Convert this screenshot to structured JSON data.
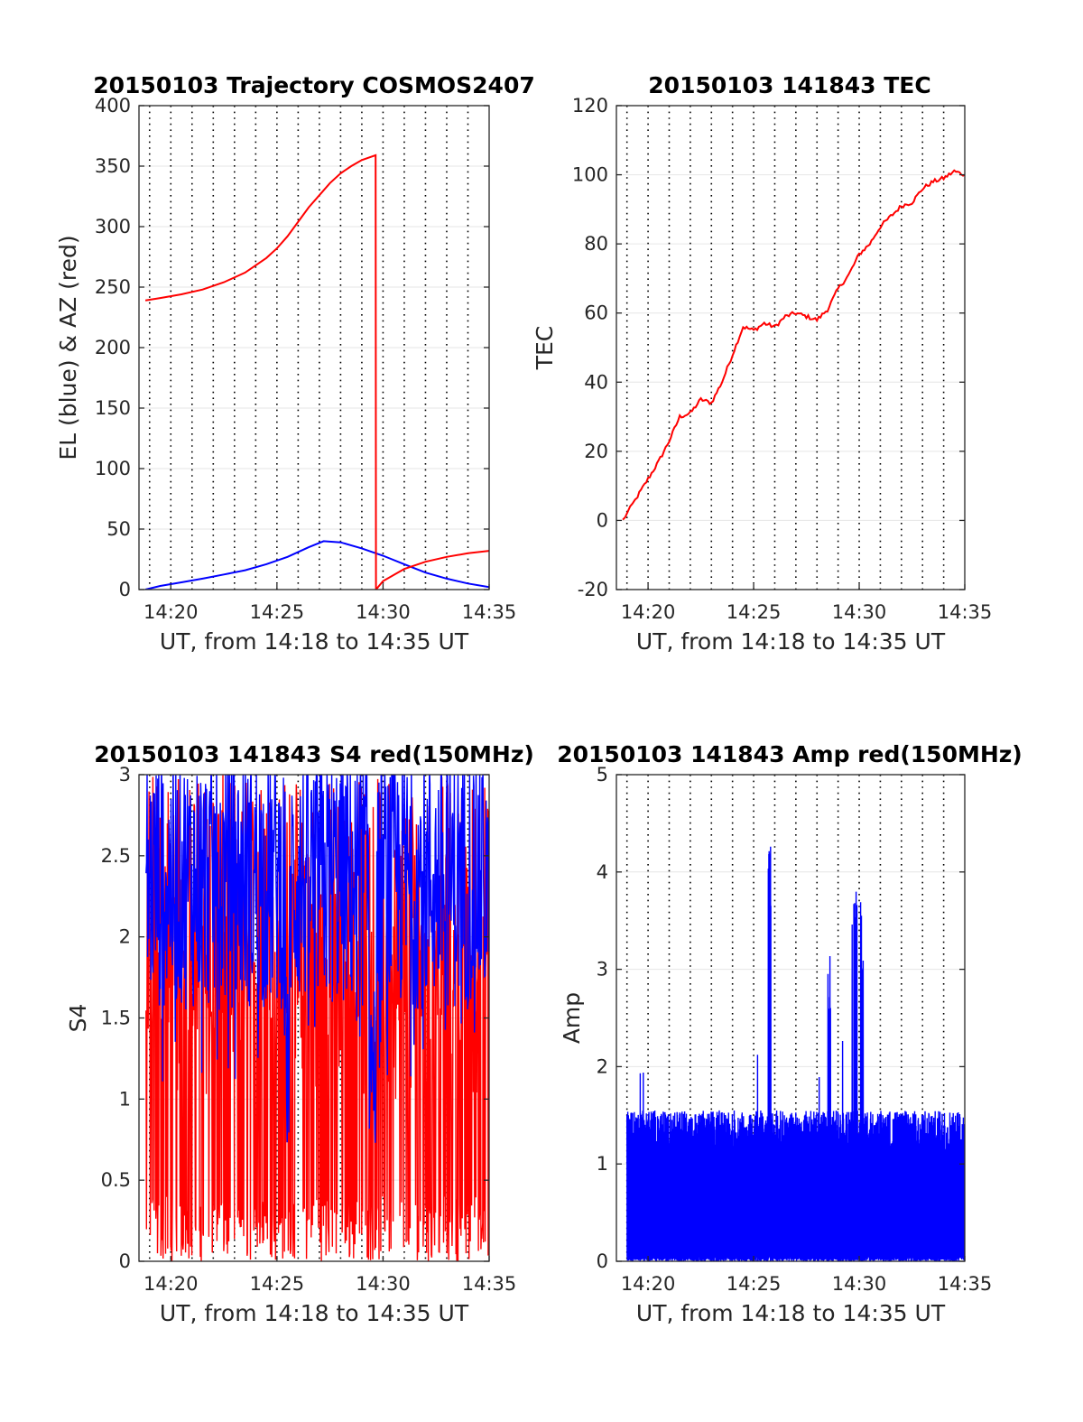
{
  "chart_data": [
    {
      "type": "line",
      "title": "20150103 Trajectory COSMOS2407",
      "xlabel": "UT, from 14:18 to 14:35 UT",
      "ylabel": "EL (blue) & AZ (red)",
      "xlim": [
        "14:18:30",
        "14:35:00"
      ],
      "ylim": [
        0,
        400
      ],
      "x_ticks": [
        "14:20",
        "14:25",
        "14:30",
        "14:35"
      ],
      "y_ticks": [
        "0",
        "50",
        "100",
        "150",
        "200",
        "250",
        "300",
        "350",
        "400"
      ],
      "grid": "vertical dotted lines every minute, horizontal light lines at y ticks",
      "series": [
        {
          "color": "#0000ff",
          "x": [
            "14:18:48",
            "14:19:30",
            "14:20:30",
            "14:21:30",
            "14:22:30",
            "14:23:30",
            "14:24:30",
            "14:25:30",
            "14:26:30",
            "14:27:12",
            "14:28:00",
            "14:29:00",
            "14:30:00",
            "14:31:00",
            "14:32:00",
            "14:33:00",
            "14:34:00",
            "14:35:00"
          ],
          "values": [
            0,
            3,
            6,
            9,
            12.5,
            16,
            21,
            27,
            35,
            40,
            39,
            34,
            28,
            21,
            14,
            9,
            5,
            2
          ]
        },
        {
          "color": "#ff0000",
          "x": [
            "14:18:48",
            "14:19:30",
            "14:20:30",
            "14:21:30",
            "14:22:30",
            "14:23:30",
            "14:24:30",
            "14:25:00",
            "14:25:30",
            "14:26:00",
            "14:26:30",
            "14:27:00",
            "14:27:30",
            "14:28:00",
            "14:28:30",
            "14:29:00",
            "14:29:39",
            "14:29:40",
            "14:30:00",
            "14:31:00",
            "14:32:00",
            "14:33:00",
            "14:34:00",
            "14:35:00"
          ],
          "values": [
            239,
            241,
            244,
            248,
            254,
            262,
            274,
            282,
            292,
            304,
            316,
            326,
            336,
            344,
            350,
            355,
            359,
            0,
            7,
            17,
            23,
            27,
            30,
            32
          ]
        }
      ]
    },
    {
      "type": "line",
      "title": "20150103 141843 TEC",
      "xlabel": "UT, from 14:18 to 14:35 UT",
      "ylabel": "TEC",
      "xlim": [
        "14:18:30",
        "14:35:00"
      ],
      "ylim": [
        -20,
        120
      ],
      "x_ticks": [
        "14:20",
        "14:25",
        "14:30",
        "14:35"
      ],
      "y_ticks": [
        "-20",
        "0",
        "20",
        "40",
        "60",
        "80",
        "100",
        "120"
      ],
      "series": [
        {
          "color": "#ff0000",
          "x": [
            "14:18:48",
            "14:19:30",
            "14:20:00",
            "14:20:30",
            "14:21:00",
            "14:21:30",
            "14:22:00",
            "14:22:30",
            "14:23:00",
            "14:23:30",
            "14:24:00",
            "14:24:30",
            "14:25:00",
            "14:25:30",
            "14:26:00",
            "14:26:30",
            "14:27:00",
            "14:27:30",
            "14:28:00",
            "14:28:30",
            "14:29:00",
            "14:29:30",
            "14:30:00",
            "14:30:30",
            "14:31:00",
            "14:31:30",
            "14:32:00",
            "14:32:30",
            "14:33:00",
            "14:33:30",
            "14:34:00",
            "14:34:30",
            "14:35:00"
          ],
          "values": [
            0,
            7,
            12,
            17,
            23,
            30,
            31,
            35,
            34,
            40,
            48,
            56,
            55,
            57,
            56,
            59,
            60,
            59,
            58,
            61,
            67,
            71,
            77,
            80,
            85,
            88,
            91,
            92,
            96,
            98,
            99,
            101,
            100
          ]
        }
      ]
    },
    {
      "type": "line",
      "title": "20150103 141843 S4 red(150MHz)",
      "xlabel": "UT, from 14:18 to 14:35 UT",
      "ylabel": "S4",
      "xlim": [
        "14:18:30",
        "14:35:00"
      ],
      "ylim": [
        0,
        3
      ],
      "x_ticks": [
        "14:20",
        "14:25",
        "14:30",
        "14:35"
      ],
      "y_ticks": [
        "0",
        "0.5",
        "1",
        "1.5",
        "2",
        "2.5",
        "3"
      ],
      "series": [
        {
          "color": "#ff0000",
          "x": [
            "14:18:50",
            "14:35:00"
          ],
          "values": [
            0,
            3
          ],
          "note_range": "dense noise spanning 0 to 3"
        },
        {
          "color": "#0000ff",
          "x": [
            "14:18:50",
            "14:35:00"
          ],
          "values": [
            1.3,
            3
          ],
          "note_range": "dense noise spanning about 1.3 to 3, dips to 0.6 near 14:25:30 and 14:29:30"
        }
      ]
    },
    {
      "type": "line",
      "title": "20150103 141843 Amp red(150MHz)",
      "xlabel": "UT, from 14:18 to 14:35 UT",
      "ylabel": "Amp",
      "xlim": [
        "14:18:30",
        "14:35:00"
      ],
      "ylim": [
        0,
        5
      ],
      "x_ticks": [
        "14:20",
        "14:25",
        "14:30",
        "14:35"
      ],
      "y_ticks": [
        "0",
        "1",
        "2",
        "3",
        "4",
        "5"
      ],
      "series": [
        {
          "color": "#0000ff",
          "x": [
            "14:19:00",
            "14:20:00",
            "14:21:00",
            "14:22:00",
            "14:23:00",
            "14:24:00",
            "14:25:00",
            "14:25:45",
            "14:26:00",
            "14:27:00",
            "14:28:00",
            "14:28:35",
            "14:29:00",
            "14:29:50",
            "14:30:10",
            "14:31:00",
            "14:32:00",
            "14:33:00",
            "14:34:00",
            "14:35:00"
          ],
          "values": [
            1.9,
            1.95,
            1.5,
            1.6,
            1.4,
            1.3,
            1.4,
            4.3,
            1.5,
            1.3,
            1.6,
            3.2,
            1.7,
            3.9,
            3.6,
            1.4,
            1.5,
            1.3,
            1.4,
            1.2
          ]
        }
      ]
    }
  ]
}
